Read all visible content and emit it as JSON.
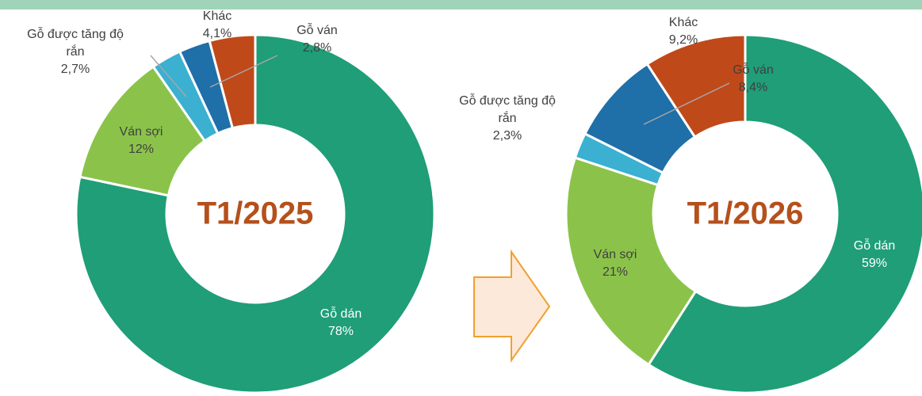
{
  "chart_data": [
    {
      "type": "donut",
      "title": "T1/2025",
      "categories": [
        "Gỗ dán",
        "Ván sợi",
        "Gỗ được tăng độ rắn",
        "Gỗ ván",
        "Khác"
      ],
      "values": [
        78,
        12,
        2.7,
        2.8,
        4.1
      ],
      "value_labels": [
        "78%",
        "12%",
        "2,7%",
        "2,8%",
        "4,1%"
      ],
      "colors": [
        "#1f9e78",
        "#8bc34a",
        "#3bb0d0",
        "#1f6fa8",
        "#c0491a"
      ]
    },
    {
      "type": "donut",
      "title": "T1/2026",
      "categories": [
        "Gỗ dán",
        "Ván sợi",
        "Gỗ được tăng độ rắn",
        "Gỗ ván",
        "Khác"
      ],
      "values": [
        59,
        21,
        2.3,
        8.4,
        9.2
      ],
      "value_labels": [
        "59%",
        "21%",
        "2,3%",
        "8,4%",
        "9,2%"
      ],
      "colors": [
        "#1f9e78",
        "#8bc34a",
        "#3bb0d0",
        "#1f6fa8",
        "#c0491a"
      ]
    }
  ]
}
